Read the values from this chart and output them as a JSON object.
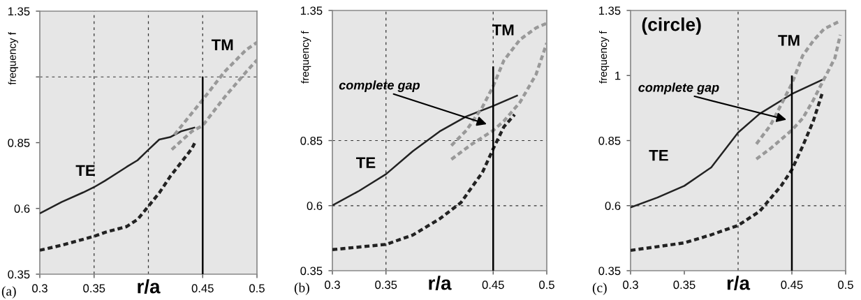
{
  "chart_data": [
    {
      "type": "line",
      "xlabel": "r/a",
      "ylabel": "frequency f",
      "xlim": [
        0.3,
        0.5
      ],
      "ylim": [
        0.35,
        1.35
      ],
      "xticks": [
        0.3,
        0.35,
        0.45,
        0.5
      ],
      "yticks": [
        0.35,
        0.6,
        0.85,
        {
          "value": 1.1,
          "label": null
        },
        1.35
      ],
      "grid": false,
      "series": [
        {
          "color": "#222222",
          "line_style": "solid",
          "x": [
            0.3,
            0.32,
            0.34,
            0.35,
            0.36,
            0.38,
            0.39,
            0.4,
            0.41,
            0.42,
            0.43,
            0.443
          ],
          "values": [
            0.581,
            0.624,
            0.661,
            0.681,
            0.705,
            0.758,
            0.783,
            0.823,
            0.862,
            0.871,
            0.893,
            0.908
          ]
        },
        {
          "color": "#222222",
          "line_style": "dashed",
          "x": [
            0.3,
            0.32,
            0.35,
            0.36,
            0.38,
            0.39,
            0.4,
            0.41,
            0.42,
            0.43,
            0.44,
            0.443
          ],
          "values": [
            0.441,
            0.46,
            0.494,
            0.509,
            0.531,
            0.558,
            0.608,
            0.659,
            0.721,
            0.774,
            0.827,
            0.852
          ]
        },
        {
          "color": "#999999",
          "line_style": "dashed",
          "x": [
            0.424,
            0.45,
            0.47,
            0.49,
            0.5
          ],
          "values": [
            0.88,
            1.013,
            1.119,
            1.203,
            1.231
          ]
        },
        {
          "color": "#999999",
          "line_style": "dashed",
          "x": [
            0.4215,
            0.44,
            0.45,
            0.47,
            0.49,
            0.5
          ],
          "values": [
            0.824,
            0.893,
            0.915,
            1.022,
            1.119,
            1.164
          ]
        },
        {
          "color": "#000000",
          "line_style": "solid",
          "x": [
            0.45,
            0.45
          ],
          "values": [
            0.35,
            1.1
          ]
        }
      ],
      "ref_lines": [
        {
          "axis": "x",
          "value": 0.35,
          "color": "#333333",
          "line_style": "dashed"
        },
        {
          "axis": "x",
          "value": 0.4,
          "color": "#333333",
          "line_style": "dashed"
        },
        {
          "axis": "x",
          "value": 0.45,
          "color": "#333333",
          "line_style": "dashed"
        },
        {
          "axis": "y",
          "value": 1.1,
          "color": "#333333",
          "line_style": "dashed"
        }
      ],
      "annotations": [
        "TE",
        "TM",
        "(a)"
      ]
    },
    {
      "type": "line",
      "xlabel": "r/a",
      "ylabel": "frequency f",
      "xlim": [
        0.3,
        0.5
      ],
      "ylim": [
        0.35,
        1.35
      ],
      "xticks": [
        0.3,
        0.35,
        0.45,
        0.5
      ],
      "yticks": [
        0.35,
        0.6,
        0.85,
        1.35
      ],
      "grid": false,
      "series": [
        {
          "color": "#222222",
          "line_style": "solid",
          "x": [
            0.3,
            0.325,
            0.35,
            0.375,
            0.4,
            0.425,
            0.45,
            0.473
          ],
          "values": [
            0.601,
            0.657,
            0.721,
            0.809,
            0.885,
            0.943,
            0.983,
            1.024
          ]
        },
        {
          "color": "#222222",
          "line_style": "dashed",
          "x": [
            0.3,
            0.35,
            0.375,
            0.4,
            0.42,
            0.44,
            0.45,
            0.46,
            0.47
          ],
          "values": [
            0.431,
            0.451,
            0.487,
            0.549,
            0.612,
            0.728,
            0.818,
            0.903,
            0.95
          ]
        },
        {
          "color": "#999999",
          "line_style": "dashed",
          "x": [
            0.411,
            0.425,
            0.44,
            0.45,
            0.46,
            0.475,
            0.49,
            0.5
          ],
          "values": [
            0.831,
            0.889,
            0.979,
            1.059,
            1.158,
            1.238,
            1.283,
            1.301
          ]
        },
        {
          "color": "#999999",
          "line_style": "dashed",
          "x": [
            0.411,
            0.43,
            0.45,
            0.46,
            0.475,
            0.49,
            0.5
          ],
          "values": [
            0.778,
            0.836,
            0.889,
            0.925,
            0.997,
            1.104,
            1.225
          ]
        },
        {
          "color": "#000000",
          "line_style": "solid",
          "x": [
            0.45,
            0.45
          ],
          "values": [
            0.35,
            1.135
          ]
        }
      ],
      "ref_lines": [
        {
          "axis": "x",
          "value": 0.35,
          "color": "#333333",
          "line_style": "dashed"
        },
        {
          "axis": "x",
          "value": 0.45,
          "color": "#333333",
          "line_style": "dashed"
        },
        {
          "axis": "y",
          "value": 0.6,
          "color": "#333333",
          "line_style": "dashed"
        },
        {
          "axis": "y",
          "value": 0.85,
          "color": "#333333",
          "line_style": "dashed"
        }
      ],
      "annotations": [
        "TE",
        "TM",
        "complete gap",
        "(b)"
      ]
    },
    {
      "type": "line",
      "xlabel": "r/a",
      "ylabel": "frequency f",
      "xlim": [
        0.3,
        0.5
      ],
      "ylim": [
        0.35,
        1.35
      ],
      "xticks": [
        0.3,
        0.35,
        0.45,
        0.5
      ],
      "yticks": [
        0.35,
        0.6,
        0.85,
        {
          "value": 1.1,
          "label": "1"
        },
        1.35
      ],
      "grid": false,
      "series": [
        {
          "color": "#222222",
          "line_style": "solid",
          "x": [
            0.3,
            0.325,
            0.35,
            0.375,
            0.4,
            0.42,
            0.45,
            0.48
          ],
          "values": [
            0.593,
            0.631,
            0.676,
            0.747,
            0.881,
            0.953,
            1.029,
            1.087
          ]
        },
        {
          "color": "#222222",
          "line_style": "dashed",
          "x": [
            0.3,
            0.35,
            0.375,
            0.4,
            0.42,
            0.44,
            0.45,
            0.46,
            0.47,
            0.478
          ],
          "values": [
            0.428,
            0.457,
            0.488,
            0.524,
            0.578,
            0.676,
            0.738,
            0.828,
            0.926,
            1.029
          ]
        },
        {
          "color": "#999999",
          "line_style": "dashed",
          "x": [
            0.417,
            0.43,
            0.44,
            0.45,
            0.46,
            0.47,
            0.48,
            0.495
          ],
          "values": [
            0.837,
            0.908,
            0.988,
            1.069,
            1.176,
            1.234,
            1.279,
            1.31
          ]
        },
        {
          "color": "#999999",
          "line_style": "dashed",
          "x": [
            0.417,
            0.43,
            0.45,
            0.46,
            0.47,
            0.48,
            0.49,
            0.495
          ],
          "values": [
            0.779,
            0.819,
            0.89,
            0.935,
            1.006,
            1.087,
            1.167,
            1.256
          ]
        },
        {
          "color": "#000000",
          "line_style": "solid",
          "x": [
            0.45,
            0.45
          ],
          "values": [
            0.35,
            1.1
          ]
        }
      ],
      "ref_lines": [
        {
          "axis": "x",
          "value": 0.4,
          "color": "#333333",
          "line_style": "dashed"
        },
        {
          "axis": "y",
          "value": 0.6,
          "color": "#333333",
          "line_style": "dashed"
        }
      ],
      "annotations": [
        "TE",
        "TM",
        "complete gap",
        "(circle)",
        "(c)"
      ]
    }
  ]
}
